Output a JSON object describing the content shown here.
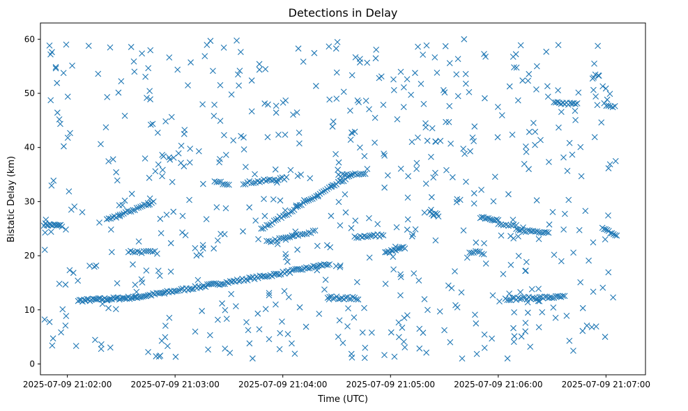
{
  "chart_data": {
    "type": "scatter",
    "title": "Detections in Delay",
    "xlabel": "Time (UTC)",
    "ylabel": "Bistatic Delay (km)",
    "marker": "x",
    "color": "#1f77b4",
    "x_unit": "seconds after 2025-07-09 21:01:00 UTC",
    "xlim": [
      45,
      382
    ],
    "ylim": [
      -2,
      63
    ],
    "x_ticks": [
      {
        "value": 60,
        "label": "2025-07-09 21:02:00"
      },
      {
        "value": 120,
        "label": "2025-07-09 21:03:00"
      },
      {
        "value": 180,
        "label": "2025-07-09 21:04:00"
      },
      {
        "value": 240,
        "label": "2025-07-09 21:05:00"
      },
      {
        "value": 300,
        "label": "2025-07-09 21:06:00"
      },
      {
        "value": 360,
        "label": "2025-07-09 21:07:00"
      }
    ],
    "y_ticks": [
      {
        "value": 0,
        "label": "0"
      },
      {
        "value": 10,
        "label": "10"
      },
      {
        "value": 20,
        "label": "20"
      },
      {
        "value": 30,
        "label": "30"
      },
      {
        "value": 40,
        "label": "40"
      },
      {
        "value": 50,
        "label": "50"
      },
      {
        "value": 60,
        "label": "60"
      }
    ],
    "tracks": [
      {
        "x_start": 47,
        "x_end": 57,
        "y_start": 25.8,
        "y_end": 25.5,
        "count": 14
      },
      {
        "x_start": 66,
        "x_end": 98,
        "y_start": 11.7,
        "y_end": 12.3,
        "count": 40
      },
      {
        "x_start": 98,
        "x_end": 175,
        "y_start": 12.3,
        "y_end": 16.5,
        "count": 80
      },
      {
        "x_start": 175,
        "x_end": 206,
        "y_start": 16.5,
        "y_end": 18.5,
        "count": 32
      },
      {
        "x_start": 82,
        "x_end": 108,
        "y_start": 26.5,
        "y_end": 30.0,
        "count": 26
      },
      {
        "x_start": 94,
        "x_end": 110,
        "y_start": 20.8,
        "y_end": 20.6,
        "count": 14
      },
      {
        "x_start": 142,
        "x_end": 150,
        "y_start": 33.6,
        "y_end": 33.3,
        "count": 8
      },
      {
        "x_start": 158,
        "x_end": 182,
        "y_start": 33.4,
        "y_end": 34.3,
        "count": 22
      },
      {
        "x_start": 168,
        "x_end": 218,
        "y_start": 25.0,
        "y_end": 34.8,
        "count": 50
      },
      {
        "x_start": 171,
        "x_end": 198,
        "y_start": 22.5,
        "y_end": 24.5,
        "count": 24
      },
      {
        "x_start": 205,
        "x_end": 222,
        "y_start": 12.3,
        "y_end": 12.1,
        "count": 18
      },
      {
        "x_start": 211,
        "x_end": 226,
        "y_start": 34.9,
        "y_end": 35.0,
        "count": 14
      },
      {
        "x_start": 220,
        "x_end": 236,
        "y_start": 23.5,
        "y_end": 23.8,
        "count": 16
      },
      {
        "x_start": 237,
        "x_end": 248,
        "y_start": 20.5,
        "y_end": 21.5,
        "count": 14
      },
      {
        "x_start": 262,
        "x_end": 266,
        "y_start": 28.0,
        "y_end": 27.5,
        "count": 5
      },
      {
        "x_start": 284,
        "x_end": 292,
        "y_start": 20.8,
        "y_end": 20.4,
        "count": 8
      },
      {
        "x_start": 290,
        "x_end": 300,
        "y_start": 27.2,
        "y_end": 26.6,
        "count": 12
      },
      {
        "x_start": 300,
        "x_end": 310,
        "y_start": 25.7,
        "y_end": 25.5,
        "count": 8
      },
      {
        "x_start": 310,
        "x_end": 328,
        "y_start": 24.7,
        "y_end": 24.4,
        "count": 18
      },
      {
        "x_start": 304,
        "x_end": 337,
        "y_start": 12.0,
        "y_end": 12.4,
        "count": 34
      },
      {
        "x_start": 331,
        "x_end": 344,
        "y_start": 48.2,
        "y_end": 48.0,
        "count": 14
      },
      {
        "x_start": 359,
        "x_end": 365,
        "y_start": 48.0,
        "y_end": 47.6,
        "count": 6
      },
      {
        "x_start": 358,
        "x_end": 366,
        "y_start": 25.0,
        "y_end": 23.7,
        "count": 10
      }
    ],
    "noise_points": 600,
    "noise_seed": 7
  }
}
